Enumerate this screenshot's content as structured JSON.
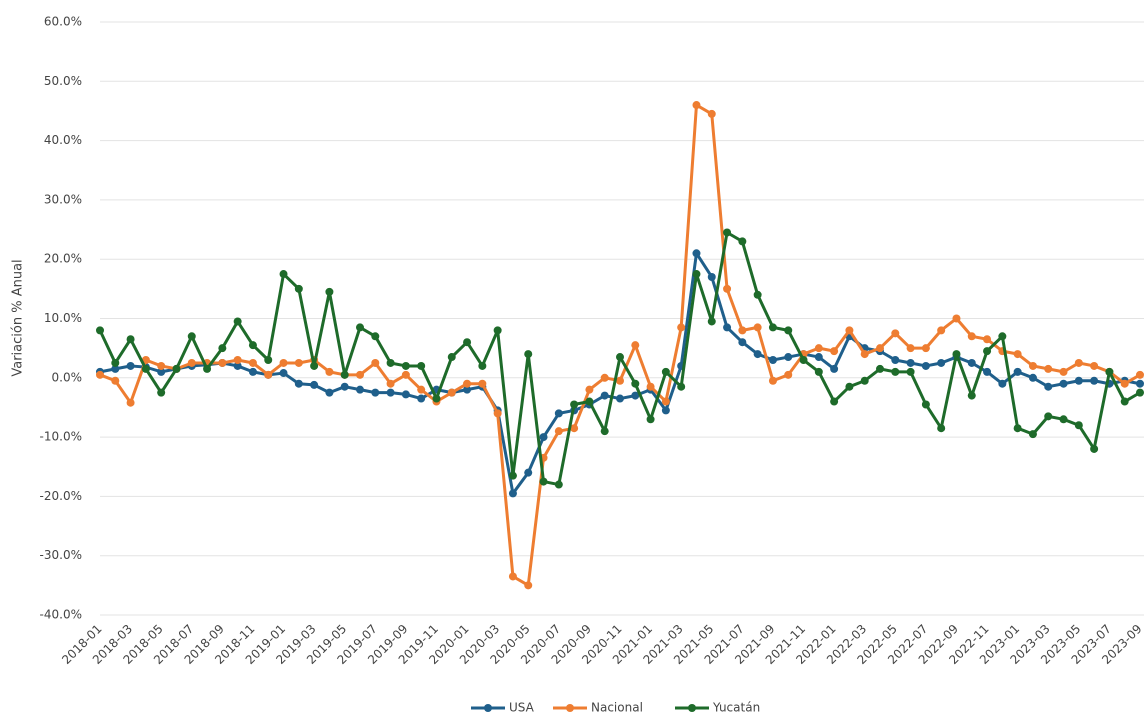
{
  "chart_data": {
    "type": "line",
    "y_label": "Variación % Anual",
    "categories": [
      "2018-01",
      null,
      "2018-03",
      null,
      "2018-05",
      null,
      "2018-07",
      null,
      "2018-09",
      null,
      "2018-11",
      null,
      "2019-01",
      null,
      "2019-03",
      null,
      "2019-05",
      null,
      "2019-07",
      null,
      "2019-09",
      null,
      "2019-11",
      null,
      "2020-01",
      null,
      "2020-03",
      null,
      "2020-05",
      null,
      "2020-07",
      null,
      "2020-09",
      null,
      "2020-11",
      null,
      "2021-01",
      null,
      "2021-03",
      null,
      "2021-05",
      null,
      "2021-07",
      null,
      "2021-09",
      null,
      "2021-11",
      null,
      "2022-01",
      null,
      "2022-03",
      null,
      "2022-05",
      null,
      "2022-07",
      null,
      "2022-09",
      null,
      "2022-11",
      null,
      "2023-01",
      null,
      "2023-03",
      null,
      "2023-05",
      null,
      "2023-07",
      null,
      "2023-09"
    ],
    "series": [
      {
        "name": "USA",
        "color": "#1f5f8b",
        "values": [
          1.0,
          1.5,
          2.0,
          1.8,
          1.0,
          1.5,
          2.0,
          2.2,
          2.5,
          2.0,
          1.0,
          0.5,
          0.8,
          -1.0,
          -1.2,
          -2.5,
          -1.5,
          -2.0,
          -2.5,
          -2.5,
          -2.8,
          -3.5,
          -2.0,
          -2.5,
          -2.0,
          -1.5,
          -5.5,
          -19.5,
          -16.0,
          -10.0,
          -6.0,
          -5.5,
          -4.5,
          -3.0,
          -3.5,
          -3.0,
          -2.0,
          -5.5,
          2.0,
          21.0,
          17.0,
          8.5,
          6.0,
          4.0,
          3.0,
          3.5,
          4.0,
          3.5,
          1.5,
          7.0,
          5.0,
          4.5,
          3.0,
          2.5,
          2.0,
          2.5,
          3.5,
          2.5,
          1.0,
          -1.0,
          1.0,
          0.0,
          -1.5,
          -1.0,
          -0.5,
          -0.5,
          -1.0,
          -0.5,
          -1.0
        ]
      },
      {
        "name": "Nacional",
        "color": "#ee7d31",
        "values": [
          0.5,
          -0.5,
          -4.2,
          3.0,
          2.0,
          1.5,
          2.5,
          2.5,
          2.5,
          3.0,
          2.5,
          0.5,
          2.5,
          2.5,
          3.0,
          1.0,
          0.5,
          0.5,
          2.5,
          -1.0,
          0.5,
          -2.0,
          -4.0,
          -2.5,
          -1.0,
          -1.0,
          -6.0,
          -33.5,
          -35.0,
          -13.5,
          -9.0,
          -8.5,
          -2.0,
          0.0,
          -0.5,
          5.5,
          -1.5,
          -4.0,
          8.5,
          46.0,
          44.5,
          15.0,
          8.0,
          8.5,
          -0.5,
          0.5,
          4.0,
          5.0,
          4.5,
          8.0,
          4.0,
          5.0,
          7.5,
          5.0,
          5.0,
          8.0,
          10.0,
          7.0,
          6.5,
          4.5,
          4.0,
          2.0,
          1.5,
          1.0,
          2.5,
          2.0,
          1.0,
          -1.0,
          0.5
        ]
      },
      {
        "name": "Yucatán",
        "color": "#1e6b2a",
        "values": [
          8.0,
          2.5,
          6.5,
          1.5,
          -2.5,
          1.5,
          7.0,
          1.5,
          5.0,
          9.5,
          5.5,
          3.0,
          17.5,
          15.0,
          2.0,
          14.5,
          0.5,
          8.5,
          7.0,
          2.5,
          2.0,
          2.0,
          -3.5,
          3.5,
          6.0,
          2.0,
          8.0,
          -16.5,
          4.0,
          -17.5,
          -18.0,
          -4.5,
          -4.0,
          -9.0,
          3.5,
          -1.0,
          -7.0,
          1.0,
          -1.5,
          17.5,
          9.5,
          24.5,
          23.0,
          14.0,
          8.5,
          8.0,
          3.0,
          1.0,
          -4.0,
          -1.5,
          -0.5,
          1.5,
          1.0,
          1.0,
          -4.5,
          -8.5,
          4.0,
          -3.0,
          4.5,
          7.0,
          -8.5,
          -9.5,
          -6.5,
          -7.0,
          -8.0,
          -12.0,
          1.0,
          -4.0,
          -2.5
        ]
      }
    ],
    "ylim": [
      -40,
      60
    ],
    "yticks": [
      {
        "value": -40,
        "label": "-40.0%"
      },
      {
        "value": -30,
        "label": "-30.0%"
      },
      {
        "value": -20,
        "label": "-20.0%"
      },
      {
        "value": -10,
        "label": "-10.0%"
      },
      {
        "value": 0,
        "label": "0.0%"
      },
      {
        "value": 10,
        "label": "10.0%"
      },
      {
        "value": 20,
        "label": "20.0%"
      },
      {
        "value": 30,
        "label": "30.0%"
      },
      {
        "value": 40,
        "label": "40.0%"
      },
      {
        "value": 50,
        "label": "50.0%"
      },
      {
        "value": 60,
        "label": "60.0%"
      }
    ],
    "grid": true,
    "legend": "bottom"
  }
}
